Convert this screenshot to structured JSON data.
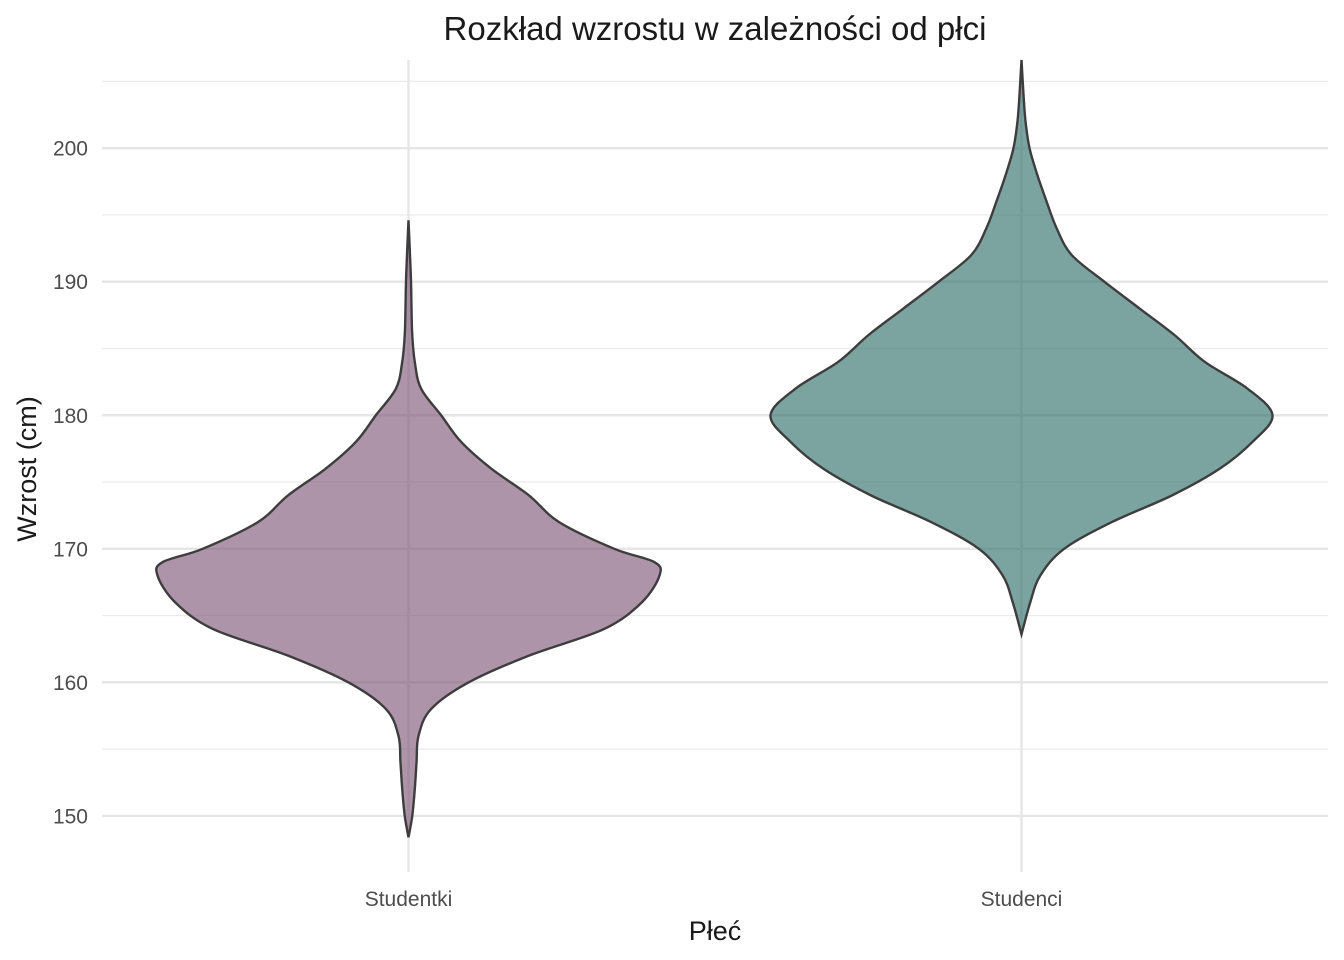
{
  "chart_data": {
    "type": "violin",
    "title": "Rozkład wzrostu w zależności od płci",
    "xlabel": "Płeć",
    "ylabel": "Wzrost (cm)",
    "categories": [
      "Studentki",
      "Studenci"
    ],
    "ylim": [
      145.8,
      206.6
    ],
    "yticks": [
      150,
      160,
      170,
      180,
      190,
      200
    ],
    "ytick_labels": [
      "150",
      "160",
      "170",
      "180",
      "190",
      "200"
    ],
    "grid": true,
    "legend": "none",
    "series": [
      {
        "category": "Studentki",
        "color": "#7b5274",
        "range": [
          148.4,
          194.6
        ],
        "profile": [
          [
            148.4,
            0.0
          ],
          [
            150,
            0.015
          ],
          [
            152,
            0.025
          ],
          [
            154,
            0.032
          ],
          [
            156,
            0.04
          ],
          [
            158,
            0.09
          ],
          [
            160,
            0.24
          ],
          [
            162,
            0.48
          ],
          [
            164,
            0.78
          ],
          [
            166,
            0.93
          ],
          [
            168,
            1.0
          ],
          [
            169,
            0.98
          ],
          [
            170,
            0.82
          ],
          [
            172,
            0.6
          ],
          [
            174,
            0.48
          ],
          [
            176,
            0.33
          ],
          [
            178,
            0.21
          ],
          [
            180,
            0.13
          ],
          [
            182,
            0.05
          ],
          [
            184,
            0.025
          ],
          [
            186,
            0.015
          ],
          [
            188,
            0.012
          ],
          [
            190,
            0.01
          ],
          [
            192,
            0.006
          ],
          [
            194.6,
            0.0
          ]
        ]
      },
      {
        "category": "Studenci",
        "color": "#2a6a66",
        "range": [
          163.6,
          206.6
        ],
        "profile": [
          [
            163.6,
            0.0
          ],
          [
            166,
            0.035
          ],
          [
            168,
            0.075
          ],
          [
            170,
            0.17
          ],
          [
            172,
            0.36
          ],
          [
            174,
            0.6
          ],
          [
            176,
            0.79
          ],
          [
            178,
            0.92
          ],
          [
            180,
            1.0
          ],
          [
            182,
            0.9
          ],
          [
            184,
            0.73
          ],
          [
            186,
            0.61
          ],
          [
            188,
            0.47
          ],
          [
            190,
            0.33
          ],
          [
            192,
            0.2
          ],
          [
            194,
            0.14
          ],
          [
            196,
            0.1
          ],
          [
            198,
            0.063
          ],
          [
            200,
            0.032
          ],
          [
            202,
            0.016
          ],
          [
            204,
            0.008
          ],
          [
            206.6,
            0.0
          ]
        ]
      }
    ]
  }
}
